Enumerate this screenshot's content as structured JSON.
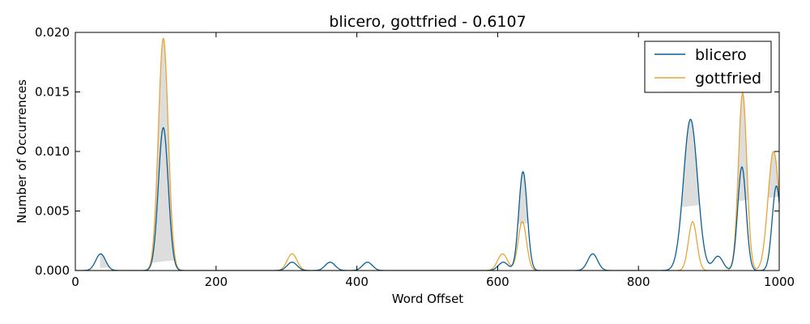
{
  "chart_data": {
    "type": "line",
    "title": "blicero, gottfried - 0.6107",
    "xlabel": "Word Offset",
    "ylabel": "Number of Occurrences",
    "xlim": [
      0,
      1000
    ],
    "ylim": [
      0,
      0.02
    ],
    "x_ticks": [
      0,
      200,
      400,
      600,
      800,
      1000
    ],
    "y_ticks": [
      0.0,
      0.005,
      0.01,
      0.015,
      0.02
    ],
    "x_tick_labels": [
      "0",
      "200",
      "400",
      "600",
      "800",
      "1000"
    ],
    "y_tick_labels": [
      "0.000",
      "0.005",
      "0.010",
      "0.015",
      "0.020"
    ],
    "grid": false,
    "legend_position": "top-right",
    "shaded_band": {
      "description": "overlap fill between curves and a sloped baseline",
      "baseline_start": [
        35,
        0.0002
      ],
      "baseline_end": [
        1000,
        0.0062
      ],
      "color": "#dddddd"
    },
    "series": [
      {
        "name": "blicero",
        "color": "#0a5f94",
        "peaks": [
          {
            "x": 36,
            "y": 0.0014,
            "w": 7
          },
          {
            "x": 125,
            "y": 0.012,
            "w": 7
          },
          {
            "x": 308,
            "y": 0.0007,
            "w": 7
          },
          {
            "x": 362,
            "y": 0.0007,
            "w": 7
          },
          {
            "x": 415,
            "y": 0.0007,
            "w": 7
          },
          {
            "x": 608,
            "y": 0.0007,
            "w": 7
          },
          {
            "x": 636,
            "y": 0.0083,
            "w": 6
          },
          {
            "x": 735,
            "y": 0.0014,
            "w": 7
          },
          {
            "x": 874,
            "y": 0.0127,
            "w": 10
          },
          {
            "x": 913,
            "y": 0.0012,
            "w": 7
          },
          {
            "x": 947,
            "y": 0.0087,
            "w": 6
          },
          {
            "x": 996,
            "y": 0.0071,
            "w": 6
          }
        ]
      },
      {
        "name": "gottfried",
        "color": "#e8a535",
        "peaks": [
          {
            "x": 125,
            "y": 0.0195,
            "w": 7
          },
          {
            "x": 308,
            "y": 0.0014,
            "w": 7
          },
          {
            "x": 607,
            "y": 0.0014,
            "w": 7
          },
          {
            "x": 635,
            "y": 0.0041,
            "w": 6
          },
          {
            "x": 877,
            "y": 0.0041,
            "w": 6
          },
          {
            "x": 948,
            "y": 0.0149,
            "w": 6
          },
          {
            "x": 992,
            "y": 0.01,
            "w": 8
          }
        ]
      }
    ]
  }
}
